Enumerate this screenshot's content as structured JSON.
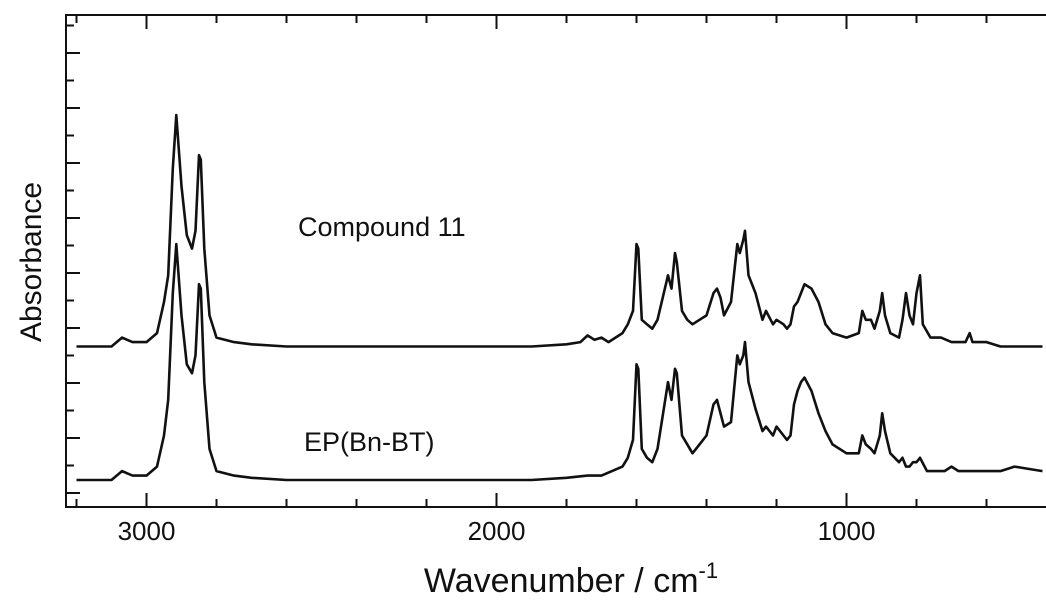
{
  "chart_data": {
    "type": "line",
    "title": "",
    "xlabel": "Wavenumber / cm",
    "xlabel_superscript": "-1",
    "ylabel": "Absorbance",
    "xlim": [
      3230,
      430
    ],
    "x_reversed": true,
    "y_ticks_shown": false,
    "y_values_unit": "arbitrary absorbance units (stacked, offset)",
    "grid": false,
    "x_ticks": [
      3000,
      2000,
      1000
    ],
    "series": [
      {
        "name": "Compound 11",
        "offset": 0.3,
        "points": [
          [
            3200,
            0.0
          ],
          [
            3100,
            0.0
          ],
          [
            3070,
            0.02
          ],
          [
            3040,
            0.01
          ],
          [
            3000,
            0.01
          ],
          [
            2970,
            0.03
          ],
          [
            2950,
            0.1
          ],
          [
            2938,
            0.16
          ],
          [
            2925,
            0.4
          ],
          [
            2915,
            0.52
          ],
          [
            2900,
            0.36
          ],
          [
            2885,
            0.25
          ],
          [
            2870,
            0.22
          ],
          [
            2860,
            0.26
          ],
          [
            2850,
            0.43
          ],
          [
            2845,
            0.42
          ],
          [
            2835,
            0.22
          ],
          [
            2820,
            0.07
          ],
          [
            2800,
            0.02
          ],
          [
            2750,
            0.01
          ],
          [
            2700,
            0.005
          ],
          [
            2600,
            0.0
          ],
          [
            2400,
            0.0
          ],
          [
            2200,
            0.0
          ],
          [
            2000,
            0.0
          ],
          [
            1900,
            0.0
          ],
          [
            1800,
            0.005
          ],
          [
            1760,
            0.01
          ],
          [
            1740,
            0.025
          ],
          [
            1720,
            0.015
          ],
          [
            1700,
            0.02
          ],
          [
            1680,
            0.01
          ],
          [
            1640,
            0.03
          ],
          [
            1625,
            0.05
          ],
          [
            1610,
            0.08
          ],
          [
            1600,
            0.23
          ],
          [
            1595,
            0.22
          ],
          [
            1585,
            0.06
          ],
          [
            1570,
            0.05
          ],
          [
            1555,
            0.04
          ],
          [
            1540,
            0.06
          ],
          [
            1510,
            0.16
          ],
          [
            1500,
            0.13
          ],
          [
            1490,
            0.21
          ],
          [
            1485,
            0.19
          ],
          [
            1470,
            0.08
          ],
          [
            1455,
            0.06
          ],
          [
            1440,
            0.05
          ],
          [
            1420,
            0.06
          ],
          [
            1400,
            0.07
          ],
          [
            1380,
            0.12
          ],
          [
            1370,
            0.13
          ],
          [
            1360,
            0.11
          ],
          [
            1350,
            0.07
          ],
          [
            1330,
            0.1
          ],
          [
            1312,
            0.23
          ],
          [
            1305,
            0.21
          ],
          [
            1295,
            0.24
          ],
          [
            1290,
            0.26
          ],
          [
            1280,
            0.16
          ],
          [
            1260,
            0.12
          ],
          [
            1240,
            0.06
          ],
          [
            1230,
            0.08
          ],
          [
            1210,
            0.05
          ],
          [
            1200,
            0.06
          ],
          [
            1180,
            0.05
          ],
          [
            1170,
            0.04
          ],
          [
            1160,
            0.05
          ],
          [
            1150,
            0.09
          ],
          [
            1140,
            0.1
          ],
          [
            1130,
            0.12
          ],
          [
            1120,
            0.14
          ],
          [
            1100,
            0.13
          ],
          [
            1080,
            0.1
          ],
          [
            1060,
            0.05
          ],
          [
            1040,
            0.03
          ],
          [
            1000,
            0.02
          ],
          [
            965,
            0.03
          ],
          [
            955,
            0.08
          ],
          [
            945,
            0.06
          ],
          [
            930,
            0.06
          ],
          [
            920,
            0.04
          ],
          [
            905,
            0.08
          ],
          [
            898,
            0.12
          ],
          [
            890,
            0.07
          ],
          [
            875,
            0.03
          ],
          [
            850,
            0.02
          ],
          [
            840,
            0.06
          ],
          [
            830,
            0.12
          ],
          [
            820,
            0.07
          ],
          [
            810,
            0.05
          ],
          [
            800,
            0.12
          ],
          [
            790,
            0.16
          ],
          [
            782,
            0.05
          ],
          [
            760,
            0.02
          ],
          [
            730,
            0.02
          ],
          [
            700,
            0.01
          ],
          [
            680,
            0.01
          ],
          [
            660,
            0.01
          ],
          [
            648,
            0.03
          ],
          [
            640,
            0.01
          ],
          [
            600,
            0.01
          ],
          [
            560,
            0.0
          ],
          [
            440,
            0.0
          ]
        ]
      },
      {
        "name": "EP(Bn-BT)",
        "offset": 0.0,
        "points": [
          [
            3200,
            0.0
          ],
          [
            3100,
            0.0
          ],
          [
            3070,
            0.02
          ],
          [
            3040,
            0.01
          ],
          [
            3000,
            0.01
          ],
          [
            2970,
            0.03
          ],
          [
            2950,
            0.1
          ],
          [
            2938,
            0.18
          ],
          [
            2925,
            0.42
          ],
          [
            2915,
            0.53
          ],
          [
            2900,
            0.37
          ],
          [
            2885,
            0.26
          ],
          [
            2870,
            0.24
          ],
          [
            2860,
            0.28
          ],
          [
            2850,
            0.44
          ],
          [
            2845,
            0.43
          ],
          [
            2835,
            0.22
          ],
          [
            2820,
            0.07
          ],
          [
            2800,
            0.02
          ],
          [
            2750,
            0.01
          ],
          [
            2700,
            0.005
          ],
          [
            2600,
            0.0
          ],
          [
            2400,
            0.0
          ],
          [
            2200,
            0.0
          ],
          [
            2000,
            0.0
          ],
          [
            1900,
            0.0
          ],
          [
            1800,
            0.005
          ],
          [
            1740,
            0.01
          ],
          [
            1700,
            0.01
          ],
          [
            1640,
            0.03
          ],
          [
            1625,
            0.05
          ],
          [
            1610,
            0.09
          ],
          [
            1600,
            0.26
          ],
          [
            1595,
            0.25
          ],
          [
            1585,
            0.07
          ],
          [
            1570,
            0.05
          ],
          [
            1555,
            0.04
          ],
          [
            1540,
            0.07
          ],
          [
            1510,
            0.22
          ],
          [
            1500,
            0.18
          ],
          [
            1490,
            0.25
          ],
          [
            1485,
            0.24
          ],
          [
            1470,
            0.1
          ],
          [
            1455,
            0.08
          ],
          [
            1440,
            0.06
          ],
          [
            1420,
            0.08
          ],
          [
            1400,
            0.1
          ],
          [
            1380,
            0.17
          ],
          [
            1370,
            0.18
          ],
          [
            1360,
            0.15
          ],
          [
            1350,
            0.12
          ],
          [
            1330,
            0.13
          ],
          [
            1312,
            0.28
          ],
          [
            1305,
            0.26
          ],
          [
            1295,
            0.28
          ],
          [
            1290,
            0.31
          ],
          [
            1280,
            0.22
          ],
          [
            1260,
            0.16
          ],
          [
            1240,
            0.11
          ],
          [
            1230,
            0.12
          ],
          [
            1210,
            0.1
          ],
          [
            1200,
            0.12
          ],
          [
            1180,
            0.1
          ],
          [
            1170,
            0.09
          ],
          [
            1160,
            0.1
          ],
          [
            1150,
            0.17
          ],
          [
            1140,
            0.2
          ],
          [
            1130,
            0.22
          ],
          [
            1120,
            0.23
          ],
          [
            1100,
            0.2
          ],
          [
            1080,
            0.15
          ],
          [
            1060,
            0.11
          ],
          [
            1040,
            0.08
          ],
          [
            1000,
            0.06
          ],
          [
            965,
            0.06
          ],
          [
            955,
            0.1
          ],
          [
            945,
            0.08
          ],
          [
            930,
            0.07
          ],
          [
            920,
            0.06
          ],
          [
            905,
            0.1
          ],
          [
            898,
            0.15
          ],
          [
            890,
            0.11
          ],
          [
            875,
            0.06
          ],
          [
            850,
            0.04
          ],
          [
            840,
            0.05
          ],
          [
            830,
            0.03
          ],
          [
            820,
            0.03
          ],
          [
            810,
            0.04
          ],
          [
            800,
            0.04
          ],
          [
            790,
            0.05
          ],
          [
            770,
            0.02
          ],
          [
            720,
            0.02
          ],
          [
            700,
            0.03
          ],
          [
            680,
            0.02
          ],
          [
            650,
            0.02
          ],
          [
            600,
            0.02
          ],
          [
            560,
            0.02
          ],
          [
            520,
            0.03
          ],
          [
            480,
            0.025
          ],
          [
            440,
            0.02
          ]
        ]
      }
    ]
  }
}
